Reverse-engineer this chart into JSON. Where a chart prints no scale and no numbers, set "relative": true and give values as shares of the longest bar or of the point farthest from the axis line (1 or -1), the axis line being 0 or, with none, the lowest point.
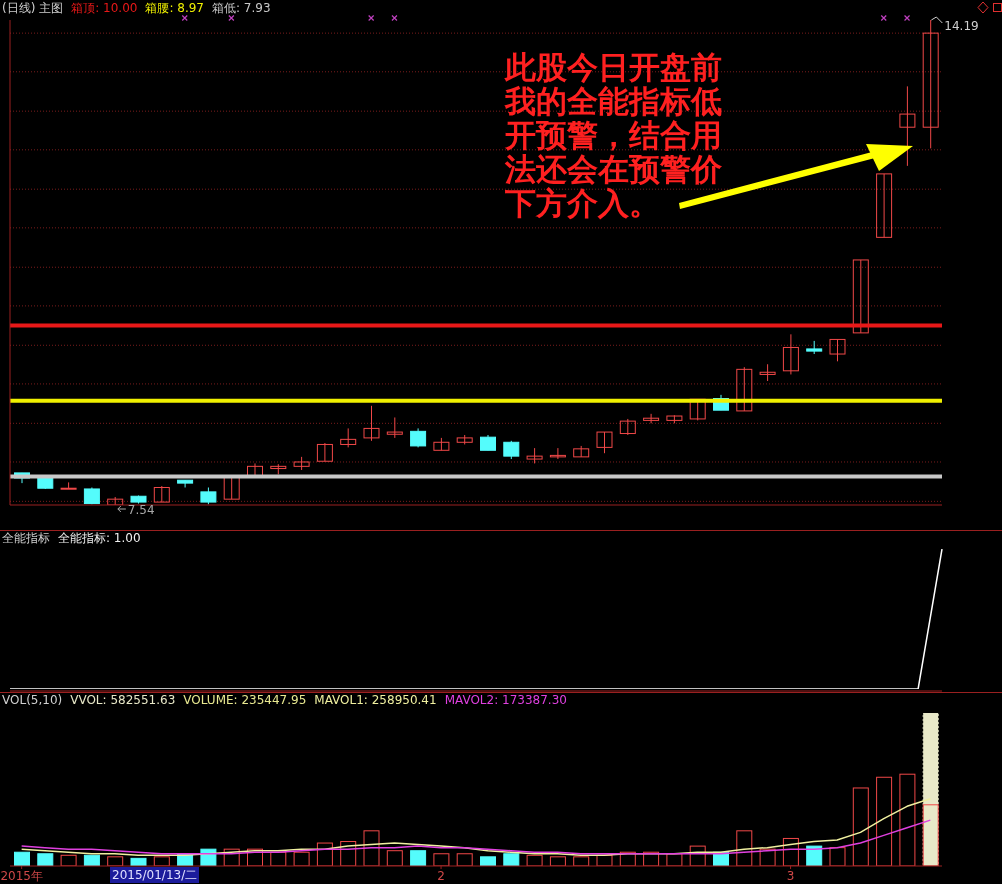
{
  "chart_data": [
    {
      "type": "candlestick",
      "title": "(日线) 主图",
      "categories": [
        null,
        null,
        null,
        null,
        null,
        null,
        null,
        null,
        null,
        null,
        null,
        null,
        null,
        null,
        null,
        null,
        null,
        null,
        null,
        null,
        null,
        null,
        null,
        null,
        null,
        null,
        null,
        null,
        null,
        null,
        null,
        null,
        null,
        null,
        null,
        null,
        null,
        null,
        null,
        null
      ],
      "tick_labels": false,
      "ohlc": [
        [
          7.98,
          7.98,
          7.84,
          7.91
        ],
        [
          7.91,
          7.91,
          7.76,
          7.77
        ],
        [
          7.76,
          7.85,
          7.76,
          7.77
        ],
        [
          7.76,
          7.78,
          7.55,
          7.56
        ],
        [
          7.54,
          7.65,
          7.54,
          7.62
        ],
        [
          7.66,
          7.67,
          7.56,
          7.58
        ],
        [
          7.58,
          7.8,
          7.58,
          7.78
        ],
        [
          7.88,
          7.88,
          7.78,
          7.84
        ],
        [
          7.72,
          7.78,
          7.55,
          7.58
        ],
        [
          7.62,
          7.92,
          7.62,
          7.92
        ],
        [
          7.92,
          8.11,
          7.92,
          8.07
        ],
        [
          8.04,
          8.1,
          7.96,
          8.07
        ],
        [
          8.07,
          8.2,
          8.02,
          8.13
        ],
        [
          8.14,
          8.39,
          8.14,
          8.37
        ],
        [
          8.37,
          8.59,
          8.33,
          8.44
        ],
        [
          8.46,
          8.9,
          8.42,
          8.59
        ],
        [
          8.51,
          8.74,
          8.46,
          8.54
        ],
        [
          8.55,
          8.59,
          8.33,
          8.35
        ],
        [
          8.29,
          8.46,
          8.29,
          8.4
        ],
        [
          8.4,
          8.5,
          8.37,
          8.46
        ],
        [
          8.47,
          8.5,
          8.29,
          8.29
        ],
        [
          8.4,
          8.42,
          8.17,
          8.21
        ],
        [
          8.17,
          8.32,
          8.11,
          8.21
        ],
        [
          8.2,
          8.32,
          8.17,
          8.22
        ],
        [
          8.2,
          8.35,
          8.2,
          8.31
        ],
        [
          8.33,
          8.54,
          8.25,
          8.54
        ],
        [
          8.52,
          8.72,
          8.5,
          8.69
        ],
        [
          8.7,
          8.79,
          8.66,
          8.73
        ],
        [
          8.7,
          8.77,
          8.66,
          8.76
        ],
        [
          8.72,
          8.99,
          8.7,
          8.99
        ],
        [
          9.0,
          9.05,
          8.84,
          8.84
        ],
        [
          8.83,
          9.43,
          8.83,
          9.4
        ],
        [
          9.33,
          9.47,
          9.24,
          9.36
        ],
        [
          9.38,
          9.88,
          9.33,
          9.7
        ],
        [
          9.68,
          9.79,
          9.61,
          9.65
        ],
        [
          9.61,
          9.81,
          9.51,
          9.81
        ],
        [
          9.9,
          10.9,
          9.9,
          10.9
        ],
        [
          11.21,
          12.08,
          11.21,
          12.08
        ],
        [
          12.72,
          13.28,
          12.19,
          12.9
        ],
        [
          12.72,
          14.19,
          12.43,
          14.01
        ]
      ],
      "colors": [
        "#54fcfc",
        "#54fcfc",
        "#f04848",
        "#54fcfc",
        "#f04848",
        "#54fcfc",
        "#f04848",
        "#54fcfc",
        "#54fcfc",
        "#f04848",
        "#f04848",
        "#f04848",
        "#f04848",
        "#f04848",
        "#f04848",
        "#f04848",
        "#f04848",
        "#54fcfc",
        "#f04848",
        "#f04848",
        "#54fcfc",
        "#54fcfc",
        "#f04848",
        "#f04848",
        "#f04848",
        "#f04848",
        "#f04848",
        "#f04848",
        "#f04848",
        "#f04848",
        "#54fcfc",
        "#f04848",
        "#f04848",
        "#f04848",
        "#54fcfc",
        "#f04848",
        "#f04848",
        "#f04848",
        "#f04848",
        "#f04848"
      ],
      "yticks": [
        {
          "value": 7.59,
          "label": null
        },
        {
          "value": 8.13,
          "label": null
        },
        {
          "value": 8.66,
          "label": null
        },
        {
          "value": 9.2,
          "label": null
        },
        {
          "value": 9.73,
          "label": null
        },
        {
          "value": 10.27,
          "label": null
        },
        {
          "value": 10.8,
          "label": null
        },
        {
          "value": 11.34,
          "label": null
        },
        {
          "value": 11.87,
          "label": null
        },
        {
          "value": 12.41,
          "label": null
        },
        {
          "value": 12.94,
          "label": null
        },
        {
          "value": 13.48,
          "label": null
        },
        {
          "value": 14.01,
          "label": null
        }
      ],
      "grid": "y",
      "ref_lines": [
        {
          "axis": "y",
          "value": 10.0,
          "label": "箱顶: 10.00",
          "color": "#e81818"
        },
        {
          "axis": "y",
          "value": 8.97,
          "label": "箱腰: 8.97",
          "color": "#f0f000"
        },
        {
          "axis": "y",
          "value": 7.93,
          "label": "箱低: 7.93",
          "color": "#c8c8c8"
        }
      ],
      "annotations": [
        "此股今日开盘前我的全能指标低开预警，结合用法还会在预警价下方介入。",
        "14.19",
        "7.54"
      ]
    },
    {
      "type": "line",
      "title": "全能指标",
      "categories": [
        null,
        null,
        null,
        null,
        null,
        null,
        null,
        null,
        null,
        null,
        null,
        null,
        null,
        null,
        null,
        null,
        null,
        null,
        null,
        null,
        null,
        null,
        null,
        null,
        null,
        null,
        null,
        null,
        null,
        null,
        null,
        null,
        null,
        null,
        null,
        null,
        null,
        null,
        null,
        null
      ],
      "tick_labels": false,
      "relative": true,
      "series": [
        {
          "color": "#ffffff",
          "values": [
            0,
            0,
            0,
            0,
            0,
            0,
            0,
            0,
            0,
            0,
            0,
            0,
            0,
            0,
            0,
            0,
            0,
            0,
            0,
            0,
            0,
            0,
            0,
            0,
            0,
            0,
            0,
            0,
            0,
            0,
            0,
            0,
            0,
            0,
            0,
            0,
            0,
            0,
            0,
            1
          ]
        }
      ],
      "annotations": [
        "全能指标: 1.00"
      ]
    },
    {
      "type": "bar",
      "title": "VOL(5,10)",
      "categories": [
        "2015年",
        null,
        null,
        null,
        null,
        null,
        null,
        null,
        null,
        null,
        null,
        null,
        null,
        null,
        null,
        null,
        null,
        null,
        "2",
        null,
        null,
        null,
        null,
        null,
        null,
        null,
        null,
        null,
        null,
        null,
        null,
        null,
        null,
        "3",
        null,
        null,
        null,
        null,
        null,
        null
      ],
      "tick_labels": "x",
      "relative": true,
      "legend": "top left",
      "series": [
        {
          "name": "VVOL: 582551.63",
          "type": "bar",
          "color": "#e8e8c8",
          "line_style": "dotted",
          "values": [
            null,
            null,
            null,
            null,
            null,
            null,
            null,
            null,
            null,
            null,
            null,
            null,
            null,
            null,
            null,
            null,
            null,
            null,
            null,
            null,
            null,
            null,
            null,
            null,
            null,
            null,
            null,
            null,
            null,
            null,
            null,
            null,
            null,
            null,
            null,
            null,
            null,
            null,
            null,
            1
          ]
        },
        {
          "type": "bar",
          "colors": [
            "#54fcfc",
            "#54fcfc",
            "#f04848",
            "#54fcfc",
            "#f04848",
            "#54fcfc",
            "#f04848",
            "#54fcfc",
            "#54fcfc",
            "#f04848",
            "#f04848",
            "#f04848",
            "#f04848",
            "#f04848",
            "#f04848",
            "#f04848",
            "#f04848",
            "#54fcfc",
            "#f04848",
            "#f04848",
            "#54fcfc",
            "#54fcfc",
            "#f04848",
            "#f04848",
            "#f04848",
            "#f04848",
            "#f04848",
            "#f04848",
            "#f04848",
            "#f04848",
            "#54fcfc",
            "#f04848",
            "#f04848",
            "#f04848",
            "#54fcfc",
            "#f04848",
            "#f04848",
            "#f04848",
            "#f04848",
            "#f04848"
          ],
          "values": [
            0.09,
            0.08,
            0.07,
            0.07,
            0.06,
            0.05,
            0.06,
            0.08,
            0.11,
            0.11,
            0.11,
            0.09,
            0.09,
            0.15,
            0.16,
            0.23,
            0.1,
            0.1,
            0.08,
            0.08,
            0.06,
            0.08,
            0.07,
            0.06,
            0.06,
            0.07,
            0.09,
            0.09,
            0.08,
            0.13,
            0.09,
            0.23,
            0.11,
            0.18,
            0.13,
            0.12,
            0.51,
            0.58,
            0.6,
            0.4
          ]
        },
        {
          "name": "MAVOL1: 258950.41",
          "type": "line",
          "color": "#f0f0a0",
          "values": [
            0.11,
            0.1,
            0.09,
            0.08,
            0.08,
            0.07,
            0.07,
            0.07,
            0.08,
            0.09,
            0.1,
            0.1,
            0.11,
            0.11,
            0.13,
            0.14,
            0.15,
            0.14,
            0.13,
            0.12,
            0.1,
            0.09,
            0.08,
            0.08,
            0.07,
            0.07,
            0.08,
            0.08,
            0.08,
            0.09,
            0.09,
            0.11,
            0.12,
            0.14,
            0.16,
            0.17,
            0.22,
            0.31,
            0.39,
            0.44
          ]
        },
        {
          "name": "MAVOL2: 173387.30",
          "type": "line",
          "color": "#e040e0",
          "values": [
            0.13,
            0.12,
            0.11,
            0.11,
            0.1,
            0.09,
            0.08,
            0.08,
            0.08,
            0.08,
            0.09,
            0.09,
            0.1,
            0.11,
            0.11,
            0.12,
            0.12,
            0.13,
            0.12,
            0.12,
            0.11,
            0.1,
            0.09,
            0.09,
            0.08,
            0.08,
            0.08,
            0.08,
            0.08,
            0.08,
            0.08,
            0.09,
            0.1,
            0.11,
            0.11,
            0.12,
            0.15,
            0.2,
            0.25,
            0.3
          ]
        }
      ],
      "annotations": [
        "VOLUME: 235447.95",
        "2015/01/13/二"
      ]
    }
  ]
}
